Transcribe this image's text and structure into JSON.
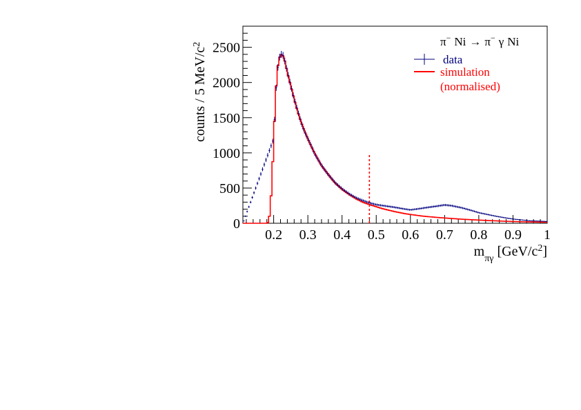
{
  "chart_data": {
    "type": "line",
    "reaction": {
      "beam": "π",
      "beam_charge": "−",
      "target": "Ni",
      "arrow": "→",
      "outgoing": "π",
      "outgoing_charge": "−",
      "gamma": "γ",
      "recoil": "Ni"
    },
    "ylabel": "counts / 5 MeV/c",
    "ylabel_sup": "2",
    "xlabel_main": "m",
    "xlabel_sub": "πγ",
    "xlabel_unit": "[GeV/c",
    "xlabel_sup": "2",
    "xlabel_close": "]",
    "xlim": [
      0.11,
      1.0
    ],
    "ylim": [
      0,
      2800
    ],
    "xticks": [
      {
        "value": 0.2,
        "label": "0.2"
      },
      {
        "value": 0.3,
        "label": "0.3"
      },
      {
        "value": 0.4,
        "label": "0.4"
      },
      {
        "value": 0.5,
        "label": "0.5"
      },
      {
        "value": 0.6,
        "label": "0.6"
      },
      {
        "value": 0.7,
        "label": "0.7"
      },
      {
        "value": 0.8,
        "label": "0.8"
      },
      {
        "value": 0.9,
        "label": "0.9"
      },
      {
        "value": 1.0,
        "label": "1"
      }
    ],
    "yticks": [
      {
        "value": 0,
        "label": "0"
      },
      {
        "value": 500,
        "label": "500"
      },
      {
        "value": 1000,
        "label": "1000"
      },
      {
        "value": 1500,
        "label": "1500"
      },
      {
        "value": 2000,
        "label": "2000"
      },
      {
        "value": 2500,
        "label": "2500"
      }
    ],
    "bin_width": 0.005,
    "cut_line": {
      "x": 0.48,
      "y_top": 970,
      "color": "#ff0000",
      "style": "dashed"
    },
    "legend_position": "top-right",
    "series": [
      {
        "name": "data",
        "kind": "points-with-errors",
        "color": "#00007f",
        "x": [
          0.11,
          0.2,
          0.205,
          0.21,
          0.215,
          0.22,
          0.225,
          0.23,
          0.235,
          0.24,
          0.25,
          0.26,
          0.27,
          0.28,
          0.29,
          0.3,
          0.32,
          0.34,
          0.36,
          0.38,
          0.4,
          0.42,
          0.44,
          0.46,
          0.48,
          0.5,
          0.52,
          0.55,
          0.58,
          0.6,
          0.63,
          0.65,
          0.68,
          0.7,
          0.72,
          0.75,
          0.78,
          0.8,
          0.83,
          0.85,
          0.88,
          0.9,
          0.93,
          0.95,
          0.98,
          1.0
        ],
        "y": [
          0,
          1200,
          1750,
          2100,
          2330,
          2390,
          2410,
          2360,
          2250,
          2150,
          1960,
          1770,
          1600,
          1440,
          1310,
          1200,
          990,
          820,
          690,
          575,
          490,
          420,
          365,
          325,
          290,
          265,
          250,
          230,
          205,
          190,
          210,
          225,
          245,
          260,
          250,
          220,
          180,
          150,
          120,
          100,
          75,
          60,
          45,
          35,
          30,
          25
        ]
      },
      {
        "name": "simulation",
        "name_line2": "(normalised)",
        "kind": "histogram-step",
        "color": "#ff0000",
        "x": [
          0.11,
          0.18,
          0.185,
          0.19,
          0.195,
          0.2,
          0.205,
          0.21,
          0.215,
          0.22,
          0.225,
          0.23,
          0.235,
          0.24,
          0.25,
          0.26,
          0.27,
          0.28,
          0.29,
          0.3,
          0.32,
          0.34,
          0.36,
          0.38,
          0.4,
          0.42,
          0.44,
          0.46,
          0.48,
          0.5,
          0.52,
          0.55,
          0.58,
          0.6,
          0.63,
          0.65,
          0.68,
          0.7,
          0.72,
          0.75,
          0.78,
          0.8,
          0.83,
          0.85,
          0.88,
          0.9,
          0.93,
          0.95,
          0.98,
          1.0
        ],
        "y": [
          0,
          0,
          20,
          180,
          600,
          1150,
          1750,
          2150,
          2330,
          2390,
          2400,
          2350,
          2260,
          2140,
          1950,
          1760,
          1590,
          1440,
          1310,
          1200,
          990,
          820,
          690,
          570,
          480,
          410,
          350,
          300,
          265,
          235,
          205,
          170,
          140,
          125,
          105,
          95,
          82,
          75,
          68,
          58,
          50,
          45,
          38,
          34,
          28,
          25,
          21,
          19,
          16,
          15
        ]
      }
    ]
  }
}
